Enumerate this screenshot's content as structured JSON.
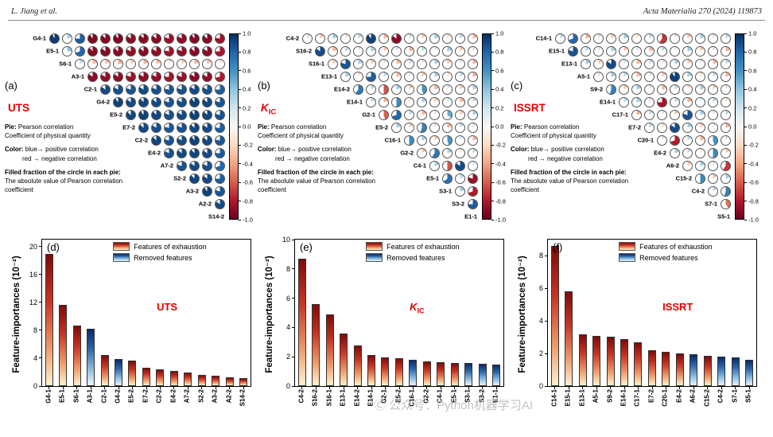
{
  "header": {
    "left": "L. Jiang et al.",
    "right": "Acta Materialia 270 (2024) 119873"
  },
  "pie_legend": [
    {
      "b": "Pie:",
      "t": " Pearson correlation",
      "gap": false,
      "indent": false
    },
    {
      "b": "",
      "t": "Coefficient of physical quantity",
      "gap": false,
      "indent": false
    },
    {
      "b": "Color:",
      "t": " blue→ positive correlation",
      "gap": true,
      "indent": false
    },
    {
      "b": "",
      "t": "red → negative correlation",
      "gap": false,
      "indent": true
    },
    {
      "b": "Filled fraction of the circle in each pie:",
      "t": "",
      "gap": true,
      "indent": false
    },
    {
      "b": "",
      "t": "The absolute value of Pearson correlation",
      "gap": false,
      "indent": false
    },
    {
      "b": "",
      "t": "coefficient",
      "gap": false,
      "indent": false
    }
  ],
  "colorbar": {
    "ticks": [
      "1.0",
      "0.8",
      "0.6",
      "0.4",
      "0.2",
      "0.0",
      "-0.2",
      "-0.4",
      "-0.6",
      "-0.8",
      "-1.0"
    ],
    "top_color": "#053061",
    "mid_color": "#f7f7f7",
    "bottom_color": "#67001f"
  },
  "chart_data": {
    "pie_matrices": [
      {
        "type": "heatmap",
        "tag": "(a)",
        "metric": "UTS",
        "metric_sub": "",
        "labels": [
          "G4-1",
          "E5-1",
          "S6-1",
          "A3-1",
          "C2-1",
          "G4-2",
          "E5-2",
          "E7-2",
          "C2-2",
          "E4-2",
          "A7-2",
          "S2-2",
          "A3-2",
          "A2-2",
          "S14-2"
        ],
        "rows": [
          [
            0.93,
            0.2,
            0.75,
            -0.9,
            -0.88,
            -0.9,
            -0.85,
            -0.88,
            -0.86,
            -0.8,
            -0.84,
            -0.9,
            -0.87,
            -0.78
          ],
          [
            0.25,
            0.7,
            -0.88,
            -0.86,
            -0.87,
            -0.82,
            -0.86,
            -0.84,
            -0.78,
            -0.82,
            -0.87,
            -0.85,
            -0.75
          ],
          [
            0.15,
            -0.2,
            -0.18,
            -0.22,
            -0.15,
            -0.2,
            -0.18,
            -0.12,
            -0.15,
            -0.2,
            -0.17,
            -0.1
          ],
          [
            -0.85,
            -0.83,
            -0.85,
            -0.8,
            -0.84,
            -0.82,
            -0.76,
            -0.8,
            -0.85,
            -0.83,
            -0.72
          ],
          [
            0.85,
            0.83,
            0.8,
            0.84,
            0.82,
            0.78,
            0.8,
            0.85,
            0.83,
            0.75
          ],
          [
            0.9,
            0.85,
            0.88,
            0.86,
            0.8,
            0.84,
            0.9,
            0.87,
            0.8
          ],
          [
            0.87,
            0.9,
            0.88,
            0.82,
            0.85,
            0.9,
            0.88,
            0.8
          ],
          [
            0.86,
            0.84,
            0.78,
            0.82,
            0.87,
            0.85,
            0.76
          ],
          [
            0.88,
            0.8,
            0.84,
            0.9,
            0.86,
            0.78
          ],
          [
            0.82,
            0.86,
            0.88,
            0.85,
            0.76
          ],
          [
            0.8,
            0.85,
            0.82,
            0.7
          ],
          [
            0.88,
            0.86,
            0.75
          ],
          [
            0.9,
            0.8
          ],
          [
            0.85
          ]
        ]
      },
      {
        "type": "heatmap",
        "tag": "(b)",
        "metric": "K",
        "metric_sub": "IC",
        "labels": [
          "C4-2",
          "S16-2",
          "S16-1",
          "E13-1",
          "E14-2",
          "E14-1",
          "G2-1",
          "E5-2",
          "C16-1",
          "G2-2",
          "C4-1",
          "E5-1",
          "S3-1",
          "S3-2",
          "E1-1"
        ],
        "rows": [
          [
            0.12,
            -0.15,
            0.2,
            -0.1,
            0.15,
            0.9,
            -0.2,
            -0.85,
            0.12,
            -0.15,
            0.2,
            -0.1,
            0.15,
            -0.2
          ],
          [
            0.85,
            -0.2,
            0.15,
            -0.1,
            0.2,
            -0.15,
            0.1,
            -0.2,
            0.15,
            -0.1,
            0.2,
            -0.15,
            0.1
          ],
          [
            -0.15,
            0.8,
            0.2,
            -0.15,
            0.1,
            -0.2,
            0.15,
            -0.1,
            0.2,
            -0.15,
            0.1,
            -0.2
          ],
          [
            0.2,
            -0.1,
            0.75,
            0.15,
            -0.2,
            0.1,
            -0.15,
            0.2,
            -0.1,
            0.15,
            -0.2
          ],
          [
            0.6,
            0.15,
            -0.5,
            0.2,
            -0.15,
            0.45,
            -0.2,
            0.1,
            -0.15,
            0.2
          ],
          [
            0.15,
            -0.2,
            0.5,
            -0.1,
            0.2,
            -0.15,
            0.1,
            -0.2,
            0.15
          ],
          [
            -0.45,
            0.7,
            0.15,
            -0.2,
            0.1,
            0.35,
            -0.15,
            0.2
          ],
          [
            0.2,
            -0.15,
            0.55,
            0.1,
            -0.2,
            0.15,
            -0.1
          ],
          [
            0.5,
            0.2,
            -0.15,
            0.45,
            0.1,
            -0.2
          ],
          [
            -0.15,
            0.6,
            0.2,
            -0.1,
            0.15
          ],
          [
            0.2,
            -0.5,
            0.85,
            0.1
          ],
          [
            0.65,
            0.15,
            -0.8
          ],
          [
            0.2,
            -0.7
          ],
          [
            0.75
          ]
        ]
      },
      {
        "type": "heatmap",
        "tag": "(c)",
        "metric": "ISSRT",
        "metric_sub": "",
        "labels": [
          "C14-1",
          "E15-1",
          "E13-1",
          "A5-1",
          "S9-2",
          "E14-1",
          "C17-1",
          "E7-2",
          "C20-1",
          "E4-2",
          "A6-2",
          "C15-2",
          "C4-2",
          "S7-1",
          "S5-1"
        ],
        "rows": [
          [
            0.15,
            0.7,
            -0.2,
            0.1,
            -0.15,
            0.2,
            -0.1,
            0.15,
            -0.6,
            0.1,
            -0.15,
            0.2,
            -0.1,
            0.15
          ],
          [
            0.8,
            0.15,
            -0.1,
            0.2,
            -0.15,
            0.1,
            -0.2,
            0.15,
            -0.1,
            0.2,
            -0.15,
            0.1,
            -0.2
          ],
          [
            0.2,
            -0.15,
            0.85,
            0.1,
            -0.2,
            0.15,
            -0.1,
            0.2,
            -0.15,
            0.1,
            -0.2,
            0.15
          ],
          [
            -0.1,
            0.2,
            0.15,
            -0.2,
            0.1,
            -0.15,
            0.9,
            0.2,
            -0.1,
            0.15,
            -0.2
          ],
          [
            0.55,
            -0.15,
            0.2,
            0.1,
            -0.2,
            0.15,
            -0.1,
            0.2,
            -0.15,
            0.1
          ],
          [
            0.15,
            0.2,
            -0.1,
            -0.75,
            0.15,
            -0.2,
            0.1,
            0.15,
            -0.1
          ],
          [
            -0.2,
            0.15,
            0.1,
            -0.15,
            0.8,
            0.2,
            -0.1,
            0.15
          ],
          [
            0.15,
            -0.1,
            0.85,
            0.2,
            -0.15,
            0.1,
            -0.2
          ],
          [
            0.1,
            -0.7,
            0.15,
            -0.2,
            0.45,
            0.1
          ],
          [
            0.2,
            0.15,
            -0.1,
            0.5,
            -0.15
          ],
          [
            -0.15,
            0.2,
            0.1,
            -0.6
          ],
          [
            0.5,
            -0.15,
            0.2
          ],
          [
            0.15,
            0.55
          ],
          [
            -0.4
          ]
        ]
      }
    ],
    "bar_charts": [
      {
        "type": "bar",
        "tag": "(d)",
        "metric": "UTS",
        "metric_sub": "",
        "ylabel": "Feature-importances (10⁻²)",
        "ymax": 21,
        "yticks": [
          0,
          4,
          8,
          12,
          16,
          20
        ],
        "categories": [
          "G4-1",
          "E5-1",
          "S6-1",
          "A3-1",
          "C2-1",
          "G4-2",
          "E5-2",
          "E7-2",
          "C2-2",
          "E4-2",
          "A7-2",
          "S2-2",
          "A3-2",
          "A2-2",
          "S14-2"
        ],
        "values": [
          19.0,
          11.7,
          8.7,
          8.2,
          4.4,
          3.9,
          3.6,
          2.6,
          2.4,
          2.2,
          1.9,
          1.6,
          1.5,
          1.3,
          1.2
        ],
        "removed_indices": [
          3,
          5
        ],
        "legend": [
          "Features of exhaustion",
          "Removed features"
        ]
      },
      {
        "type": "bar",
        "tag": "(e)",
        "metric": "K",
        "metric_sub": "IC",
        "ylabel": "Feature-importances (10⁻²)",
        "ymax": 10,
        "yticks": [
          0,
          2,
          4,
          6,
          8,
          10
        ],
        "categories": [
          "C4-2",
          "S16-2",
          "S16-1",
          "E13-1",
          "E14-2",
          "E14-1",
          "G2-1",
          "E5-2",
          "C16-1",
          "G2-2",
          "C4-1",
          "E5-1",
          "S3-1",
          "S3-2",
          "E1-1"
        ],
        "values": [
          8.7,
          5.6,
          4.9,
          3.6,
          2.75,
          2.1,
          1.95,
          1.9,
          1.8,
          1.7,
          1.65,
          1.6,
          1.55,
          1.5,
          1.45
        ],
        "removed_indices": [
          8,
          12,
          13,
          14
        ],
        "legend": [
          "Features of exhaustion",
          "Removed features"
        ]
      },
      {
        "type": "bar",
        "tag": "(f)",
        "metric": "ISSRT",
        "metric_sub": "",
        "ylabel": "Feature-importances (10⁻²)",
        "ymax": 9,
        "yticks": [
          0,
          2,
          4,
          6,
          8
        ],
        "categories": [
          "C14-1",
          "E15-1",
          "E13-1",
          "A5-1",
          "S9-2",
          "E14-1",
          "C17-1",
          "E7-2",
          "C20-1",
          "E4-2",
          "A6-2",
          "C15-2",
          "C4-2",
          "S7-1",
          "S5-1"
        ],
        "values": [
          8.6,
          5.8,
          3.2,
          3.1,
          3.05,
          2.9,
          2.7,
          2.2,
          2.1,
          2.0,
          1.95,
          1.85,
          1.8,
          1.75,
          1.6
        ],
        "removed_indices": [
          10,
          12,
          13,
          14
        ],
        "legend": [
          "Features of exhaustion",
          "Removed features"
        ]
      }
    ]
  },
  "watermark": "Ⓒ 公众号：Python机器学习AI"
}
